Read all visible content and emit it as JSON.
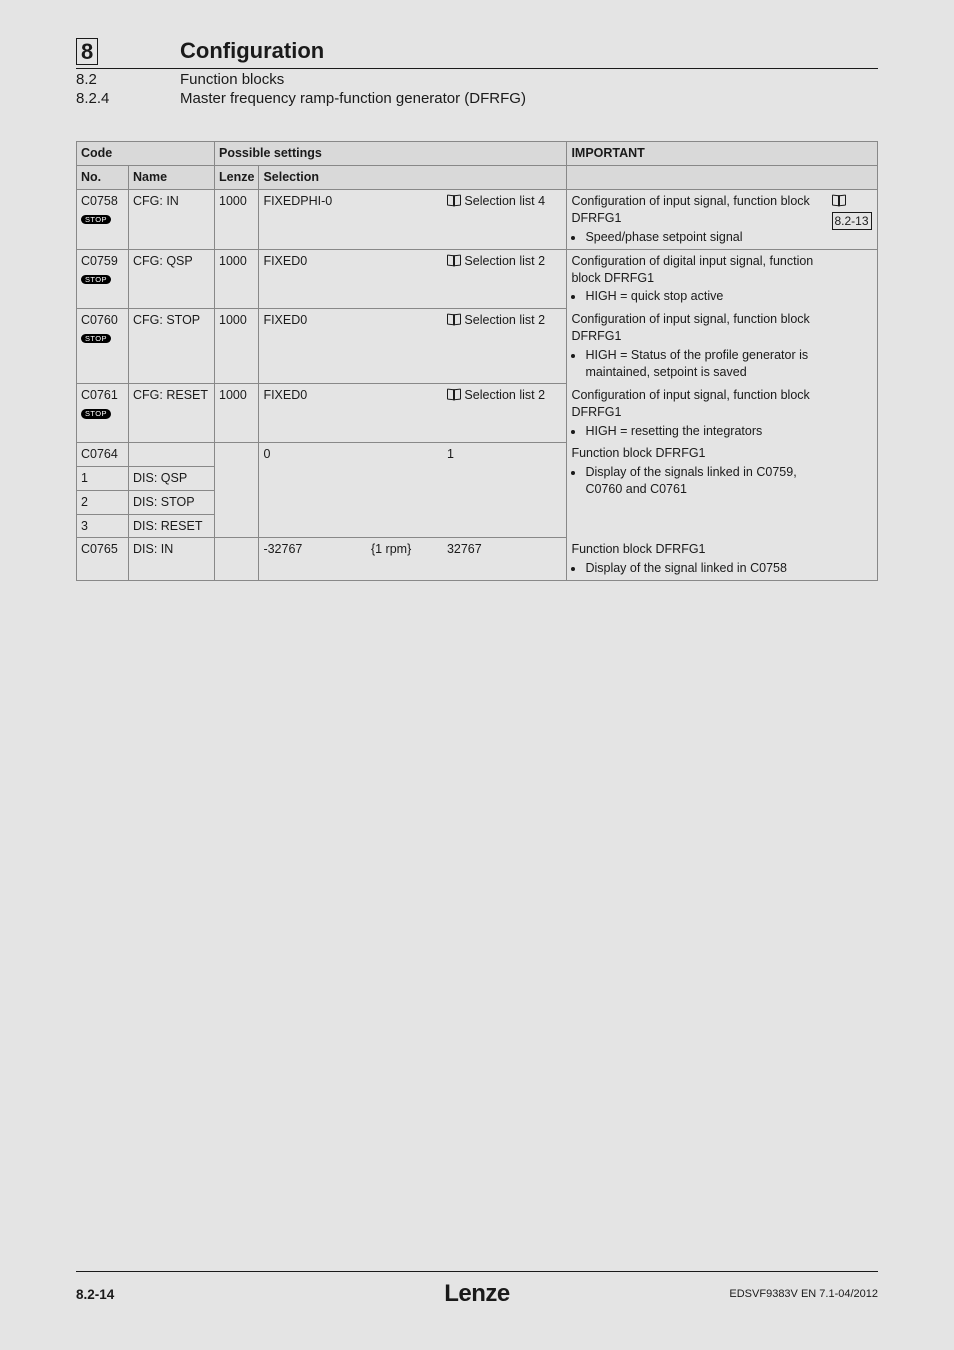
{
  "header": {
    "chapter_num": "8",
    "chapter_title": "Configuration",
    "sec_num": "8.2",
    "sec_title": "Function blocks",
    "subsec_num": "8.2.4",
    "subsec_title": "Master frequency ramp-function generator (DFRFG)"
  },
  "table": {
    "head": {
      "code": "Code",
      "possible": "Possible settings",
      "important": "IMPORTANT",
      "no": "No.",
      "name": "Name",
      "lenze": "Lenze",
      "selection": "Selection"
    },
    "badge": "STOP",
    "rows": {
      "r1": {
        "no": "C0758",
        "name": "CFG: IN",
        "lenze": "1000",
        "sel": "FIXEDPHI-0",
        "list": "Selection list 4",
        "imp1": "Configuration of input signal, function block DFRFG1",
        "imp_b1": "Speed/phase setpoint signal",
        "ref": "8.2-13"
      },
      "r2": {
        "no": "C0759",
        "name": "CFG: QSP",
        "lenze": "1000",
        "sel": "FIXED0",
        "list": "Selection list 2",
        "imp1": "Configuration of digital input signal, function block DFRFG1",
        "imp_b1": "HIGH = quick stop active"
      },
      "r3": {
        "no": "C0760",
        "name": "CFG: STOP",
        "lenze": "1000",
        "sel": "FIXED0",
        "list": "Selection list 2",
        "imp1": "Configuration of input signal, function block DFRFG1",
        "imp_b1": "HIGH = Status of the profile generator is maintained, setpoint is saved"
      },
      "r4": {
        "no": "C0761",
        "name": "CFG: RESET",
        "lenze": "1000",
        "sel": "FIXED0",
        "list": "Selection list 2",
        "imp1": "Configuration of input signal, function block DFRFG1",
        "imp_b1": "HIGH = resetting the integrators"
      },
      "r5": {
        "no": "C0764",
        "sub1_no": "1",
        "sub1_name": "DIS: QSP",
        "sub2_no": "2",
        "sub2_name": "DIS: STOP",
        "sub3_no": "3",
        "sub3_name": "DIS: RESET",
        "sel_lo": "0",
        "sel_hi": "1",
        "imp1": "Function block DFRFG1",
        "imp_b1": "Display of the signals linked in C0759, C0760 and C0761"
      },
      "r6": {
        "no": "C0765",
        "name": "DIS: IN",
        "sel_lo": "-32767",
        "unit": "{1 rpm}",
        "sel_hi": "32767",
        "imp1": "Function block DFRFG1",
        "imp_b1": "Display of the signal linked in C0758"
      }
    }
  },
  "footer": {
    "page": "8.2-14",
    "brand": "Lenze",
    "docid": "EDSVF9383V EN 7.1-04/2012"
  }
}
